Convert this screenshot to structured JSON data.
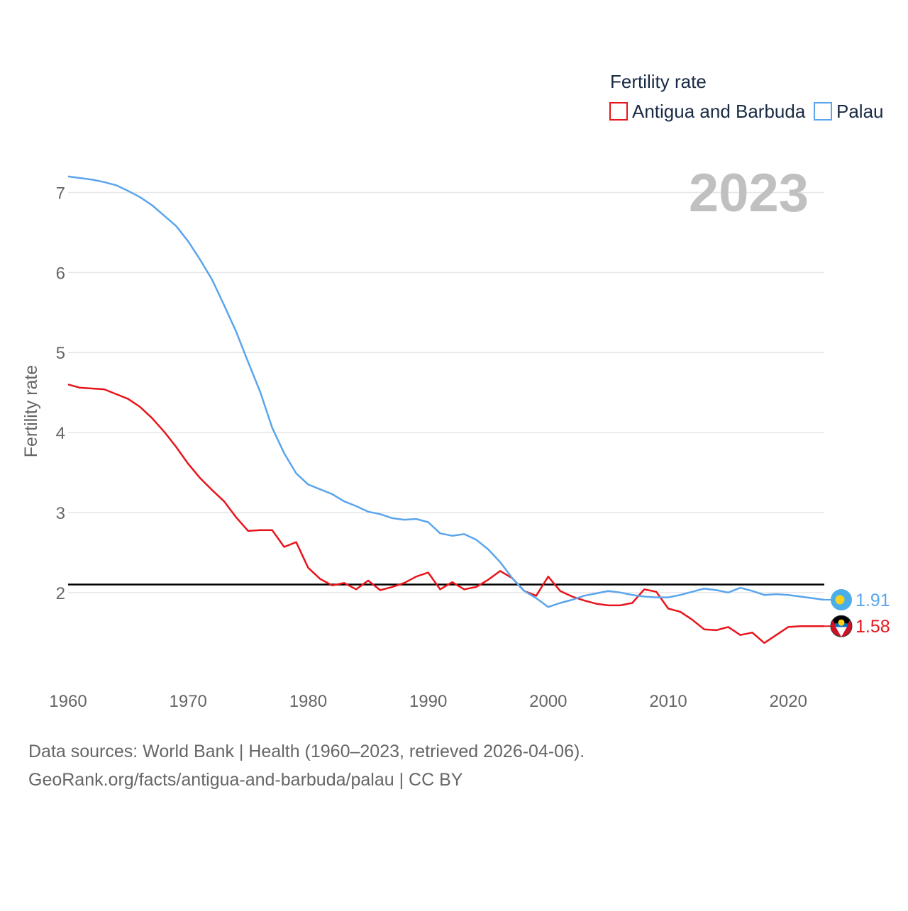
{
  "chart_data": {
    "type": "line",
    "title": "Fertility rate",
    "year_label": "2023",
    "xlabel": "",
    "ylabel": "Fertility rate",
    "xlim": [
      1960,
      2023
    ],
    "ylim": [
      0.9,
      7.5
    ],
    "x_ticks": [
      1960,
      1970,
      1980,
      1990,
      2000,
      2010,
      2020
    ],
    "y_ticks": [
      2,
      3,
      4,
      5,
      6,
      7
    ],
    "reference_line": {
      "value": 2.1,
      "color": "#000000"
    },
    "legend": {
      "title": "Fertility rate",
      "position": "top-right"
    },
    "x": [
      1960,
      1961,
      1962,
      1963,
      1964,
      1965,
      1966,
      1967,
      1968,
      1969,
      1970,
      1971,
      1972,
      1973,
      1974,
      1975,
      1976,
      1977,
      1978,
      1979,
      1980,
      1981,
      1982,
      1983,
      1984,
      1985,
      1986,
      1987,
      1988,
      1989,
      1990,
      1991,
      1992,
      1993,
      1994,
      1995,
      1996,
      1997,
      1998,
      1999,
      2000,
      2001,
      2002,
      2003,
      2004,
      2005,
      2006,
      2007,
      2008,
      2009,
      2010,
      2011,
      2012,
      2013,
      2014,
      2015,
      2016,
      2017,
      2018,
      2019,
      2020,
      2021,
      2022,
      2023
    ],
    "series": [
      {
        "name": "Antigua and Barbuda",
        "color": "#e8141b",
        "end_label": "1.58",
        "values": [
          4.6,
          4.56,
          4.55,
          4.54,
          4.48,
          4.42,
          4.32,
          4.18,
          4.01,
          3.82,
          3.61,
          3.43,
          3.28,
          3.14,
          2.94,
          2.77,
          2.78,
          2.78,
          2.57,
          2.63,
          2.31,
          2.17,
          2.09,
          2.12,
          2.04,
          2.15,
          2.03,
          2.07,
          2.12,
          2.2,
          2.25,
          2.04,
          2.13,
          2.04,
          2.07,
          2.16,
          2.27,
          2.18,
          2.02,
          1.96,
          2.2,
          2.02,
          1.95,
          1.9,
          1.86,
          1.84,
          1.84,
          1.87,
          2.04,
          2.01,
          1.8,
          1.76,
          1.66,
          1.54,
          1.53,
          1.57,
          1.47,
          1.5,
          1.37,
          1.47,
          1.57,
          1.58,
          1.58,
          1.58
        ]
      },
      {
        "name": "Palau",
        "color": "#5aa5ec",
        "end_label": "1.91",
        "values": [
          7.2,
          7.18,
          7.16,
          7.13,
          7.09,
          7.02,
          6.94,
          6.84,
          6.71,
          6.58,
          6.39,
          6.16,
          5.91,
          5.59,
          5.26,
          4.88,
          4.51,
          4.06,
          3.74,
          3.49,
          3.35,
          3.29,
          3.23,
          3.14,
          3.08,
          3.01,
          2.98,
          2.93,
          2.91,
          2.92,
          2.88,
          2.74,
          2.71,
          2.73,
          2.66,
          2.54,
          2.38,
          2.18,
          2.02,
          1.93,
          1.82,
          1.87,
          1.91,
          1.96,
          1.99,
          2.02,
          2.0,
          1.97,
          1.95,
          1.94,
          1.94,
          1.97,
          2.01,
          2.05,
          2.03,
          2.0,
          2.06,
          2.02,
          1.97,
          1.98,
          1.97,
          1.95,
          1.93,
          1.91
        ]
      }
    ]
  },
  "source": {
    "line1": "Data sources: World Bank | Health (1960–2023, retrieved 2026-04-06).",
    "line2": "GeoRank.org/facts/antigua-and-barbuda/palau | CC BY"
  }
}
